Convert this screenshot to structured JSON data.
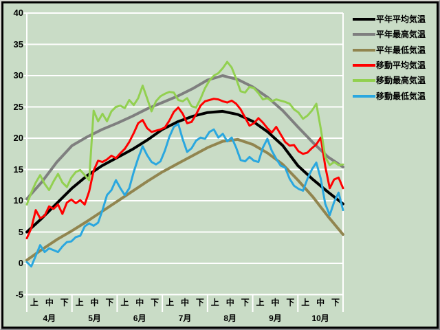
{
  "colors": {
    "background": "#c9dcc6",
    "grid": "#ffffff",
    "frame_outer": "#d8d8d2",
    "frame_inner": "#000000",
    "normal_mean": "#000000",
    "normal_max": "#7f7f7f",
    "normal_min": "#91854f",
    "moving_mean": "#ff0000",
    "moving_max": "#92d050",
    "moving_min": "#2aa7df"
  },
  "chart_data": {
    "type": "line",
    "title": "",
    "ylabel": "",
    "xlabel": "",
    "ylim": [
      -5,
      40
    ],
    "grid": true,
    "legend_position": "right",
    "x_axis": {
      "months": [
        "4月",
        "5月",
        "6月",
        "7月",
        "8月",
        "9月",
        "10月"
      ],
      "period_labels": [
        "上",
        "中",
        "下"
      ],
      "days_total": 214,
      "note": "x domain is days from Apr 1 (d=0) to Oct 31 (d=213); each month split into 上/中/下 ten-day periods"
    },
    "y_axis": {
      "min": -5,
      "max": 40,
      "step": 5,
      "ticks": [
        "40",
        "35",
        "30",
        "25",
        "20",
        "15",
        "10",
        "5",
        "0",
        "-5"
      ]
    },
    "series": [
      {
        "key": "normal-mean",
        "name": "平年平均気温",
        "color": "#000000",
        "width": 4,
        "style": "smooth",
        "values": [
          5.0,
          7.2,
          9.6,
          12.0,
          14.0,
          15.6,
          16.9,
          18.2,
          19.7,
          21.4,
          22.6,
          23.5,
          24.1,
          24.3,
          23.8,
          22.7,
          21.0,
          18.8,
          15.6,
          13.4,
          11.4,
          9.5
        ]
      },
      {
        "key": "normal-max",
        "name": "平年最高気温",
        "color": "#7f7f7f",
        "width": 4,
        "style": "smooth",
        "values": [
          10.3,
          13.0,
          16.2,
          18.8,
          20.2,
          21.4,
          22.4,
          23.5,
          24.7,
          25.7,
          26.7,
          27.9,
          29.3,
          30.0,
          29.4,
          28.2,
          26.5,
          24.4,
          21.8,
          19.3,
          17.0,
          15.4
        ]
      },
      {
        "key": "normal-min",
        "name": "平年最低気温",
        "color": "#91854f",
        "width": 4,
        "style": "smooth",
        "values": [
          0.5,
          2.2,
          3.8,
          5.2,
          6.7,
          8.3,
          9.9,
          11.5,
          13.1,
          14.6,
          15.9,
          17.2,
          18.5,
          19.5,
          19.8,
          19.0,
          17.6,
          15.8,
          13.3,
          10.6,
          7.5,
          4.6
        ]
      },
      {
        "key": "moving-mean",
        "name": "移動平均気温",
        "color": "#ff0000",
        "width": 3,
        "style": "jagged",
        "values": [
          4.0,
          5.6,
          8.5,
          7.2,
          7.6,
          9.1,
          8.7,
          9.4,
          7.9,
          9.7,
          10.2,
          9.6,
          10.1,
          9.4,
          11.5,
          14.8,
          16.4,
          16.2,
          16.6,
          17.2,
          16.8,
          17.6,
          18.3,
          19.4,
          20.8,
          22.4,
          22.9,
          21.6,
          21.0,
          21.2,
          21.4,
          21.7,
          22.8,
          24.2,
          24.9,
          23.9,
          22.4,
          22.6,
          23.8,
          25.2,
          25.9,
          26.1,
          26.3,
          26.2,
          25.9,
          25.7,
          26.0,
          25.5,
          24.6,
          23.3,
          22.0,
          22.4,
          23.2,
          22.5,
          21.6,
          20.9,
          21.8,
          20.6,
          19.4,
          18.8,
          18.9,
          17.9,
          17.5,
          17.7,
          18.4,
          19.0,
          20.1,
          15.5,
          12.0,
          13.4,
          13.7,
          12.0
        ]
      },
      {
        "key": "moving-max",
        "name": "移動最高気温",
        "color": "#92d050",
        "width": 3,
        "style": "jagged",
        "values": [
          9.4,
          11.3,
          12.9,
          14.1,
          12.7,
          11.7,
          13.1,
          14.3,
          12.9,
          12.2,
          13.7,
          14.6,
          14.9,
          14.1,
          13.3,
          24.4,
          22.7,
          23.9,
          22.7,
          24.3,
          25.0,
          25.2,
          24.8,
          26.1,
          25.3,
          26.4,
          28.4,
          26.4,
          24.3,
          25.9,
          26.7,
          27.1,
          27.4,
          27.3,
          26.1,
          25.9,
          26.4,
          25.1,
          24.9,
          26.3,
          28.0,
          29.2,
          30.0,
          30.4,
          31.2,
          32.2,
          31.3,
          29.5,
          27.5,
          27.3,
          28.2,
          28.0,
          27.2,
          26.2,
          26.4,
          25.9,
          26.2,
          26.0,
          25.8,
          25.5,
          24.6,
          24.1,
          23.1,
          23.6,
          24.4,
          25.5,
          21.5,
          17.0,
          15.7,
          16.2,
          15.7,
          15.8
        ]
      },
      {
        "key": "moving-min",
        "name": "移動最低気温",
        "color": "#2aa7df",
        "width": 3,
        "style": "jagged",
        "values": [
          0.2,
          -0.5,
          1.2,
          2.9,
          1.8,
          2.4,
          2.1,
          1.8,
          2.7,
          3.4,
          3.5,
          4.2,
          4.4,
          5.9,
          6.4,
          6.0,
          6.5,
          8.5,
          10.9,
          11.7,
          13.3,
          12.0,
          10.9,
          12.0,
          14.6,
          16.8,
          18.7,
          17.3,
          16.2,
          15.8,
          16.3,
          18.0,
          20.2,
          21.8,
          22.3,
          19.8,
          17.8,
          18.4,
          19.6,
          20.1,
          19.9,
          21.0,
          21.4,
          20.1,
          20.7,
          19.5,
          20.1,
          18.5,
          16.5,
          16.3,
          17.0,
          16.4,
          16.2,
          18.5,
          19.9,
          18.0,
          16.7,
          15.6,
          15.3,
          13.5,
          12.4,
          11.9,
          11.6,
          13.5,
          15.0,
          16.1,
          13.5,
          9.5,
          7.7,
          9.8,
          11.3,
          8.5
        ]
      }
    ]
  }
}
